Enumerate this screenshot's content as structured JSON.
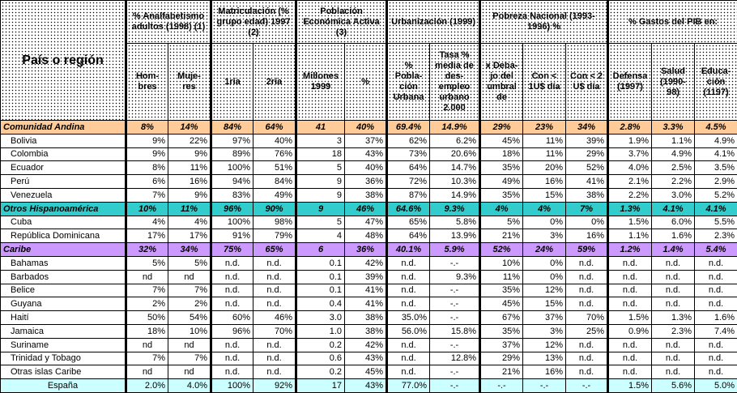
{
  "header": {
    "corner": "País o región",
    "groups": [
      "% Analfabetismo adultos (1998) (1)",
      "Matriculación (% grupo edad) 1997 (2)",
      "Población Económica Activa (3)",
      "Urbanización (1999)",
      "Pobreza Nacional (1993-1996) %",
      "% Gastos del PIB    en:"
    ],
    "sub": [
      "Hom-bres",
      "Muje-res",
      "1ría",
      "2ría",
      "Millones 1999",
      "%",
      "% Pobla-ción Urbana",
      "Tasa % media de des-empleo urbano 2.000",
      "x Deba-jo del umbral de",
      "Con < 1U$ día",
      "Con < 2 U$ día",
      "Defensa (1997)",
      "Salud (1990-98)",
      "Educa-ción (1197)"
    ]
  },
  "colors": {
    "comunidad_andina": "#FFCC99",
    "otros_hispanoamerica": "#33CCCC",
    "caribe": "#CC99FF",
    "espana": "#CCFFFF"
  },
  "rows": [
    {
      "type": "group",
      "color": "#FFCC99",
      "name": "Comunidad Andina",
      "cells": [
        "8%",
        "14%",
        "84%",
        "64%",
        "41",
        "40%",
        "69.4%",
        "14.9%",
        "29%",
        "23%",
        "34%",
        "2.8%",
        "3.3%",
        "4.5%"
      ]
    },
    {
      "type": "country",
      "name": "Bolivia",
      "cells": [
        "9%",
        "22%",
        "97%",
        "40%",
        "3",
        "37%",
        "62%",
        "6.2%",
        "45%",
        "11%",
        "39%",
        "1.9%",
        "1.1%",
        "4.9%"
      ]
    },
    {
      "type": "country",
      "name": "Colombia",
      "cells": [
        "9%",
        "9%",
        "89%",
        "76%",
        "18",
        "43%",
        "73%",
        "20.6%",
        "18%",
        "11%",
        "29%",
        "3.7%",
        "4.9%",
        "4.1%"
      ]
    },
    {
      "type": "country",
      "name": "Ecuador",
      "cells": [
        "8%",
        "11%",
        "100%",
        "51%",
        "5",
        "40%",
        "64%",
        "14.7%",
        "35%",
        "20%",
        "52%",
        "4.0%",
        "2.5%",
        "3.5%"
      ]
    },
    {
      "type": "country",
      "name": "Perú",
      "cells": [
        "6%",
        "16%",
        "94%",
        "84%",
        "9",
        "36%",
        "72%",
        "10.3%",
        "49%",
        "16%",
        "41%",
        "2.1%",
        "2.2%",
        "2.9%"
      ]
    },
    {
      "type": "country",
      "name": "Venezuela",
      "cells": [
        "7%",
        "9%",
        "83%",
        "49%",
        "9",
        "38%",
        "87%",
        "14.9%",
        "35%",
        "15%",
        "38%",
        "2.2%",
        "3.0%",
        "5.2%"
      ]
    },
    {
      "type": "group",
      "color": "#33CCCC",
      "name": "Otros Hispanoamérica",
      "cells": [
        "10%",
        "11%",
        "96%",
        "90%",
        "9",
        "46%",
        "64.6%",
        "9.3%",
        "4%",
        "4%",
        "7%",
        "1.3%",
        "4.1%",
        "4.1%"
      ]
    },
    {
      "type": "country",
      "name": "Cuba",
      "cells": [
        "4%",
        "4%",
        "100%",
        "98%",
        "5",
        "47%",
        "65%",
        "5.8%",
        "5%",
        "0%",
        "0%",
        "1.5%",
        "6.0%",
        "5.5%"
      ]
    },
    {
      "type": "country",
      "name": "República Dominicana",
      "cells": [
        "17%",
        "17%",
        "91%",
        "79%",
        "4",
        "48%",
        "64%",
        "13.9%",
        "21%",
        "3%",
        "16%",
        "1.1%",
        "1.6%",
        "2.3%"
      ]
    },
    {
      "type": "group",
      "color": "#CC99FF",
      "name": "Caribe",
      "cells": [
        "32%",
        "34%",
        "75%",
        "65%",
        "6",
        "36%",
        "40.1%",
        "5.9%",
        "52%",
        "24%",
        "59%",
        "1.2%",
        "1.4%",
        "5.4%"
      ]
    },
    {
      "type": "country",
      "name": "Bahamas",
      "cells": [
        "5%",
        "5%",
        "n.d.",
        "n.d.",
        "0.1",
        "42%",
        "n.d.",
        "-.-",
        "10%",
        "0%",
        "n.d.",
        "n.d.",
        "n.d.",
        "n.d."
      ]
    },
    {
      "type": "country",
      "name": "Barbados",
      "cells": [
        "nd",
        "nd",
        "n.d.",
        "n.d.",
        "0.1",
        "39%",
        "n.d.",
        "9.3%",
        "11%",
        "0%",
        "n.d.",
        "n.d.",
        "n.d.",
        "n.d."
      ]
    },
    {
      "type": "country",
      "name": "Belice",
      "cells": [
        "7%",
        "7%",
        "n.d.",
        "n.d.",
        "0.1",
        "41%",
        "n.d.",
        "-.-",
        "35%",
        "12%",
        "n.d.",
        "n.d.",
        "n.d.",
        "n.d."
      ]
    },
    {
      "type": "country",
      "name": "Guyana",
      "cells": [
        "2%",
        "2%",
        "n.d.",
        "n.d.",
        "0.4",
        "41%",
        "n.d.",
        "-.-",
        "45%",
        "15%",
        "n.d.",
        "n.d.",
        "n.d.",
        "n.d."
      ]
    },
    {
      "type": "country",
      "name": "Haití",
      "cells": [
        "50%",
        "54%",
        "60%",
        "46%",
        "3.0",
        "38%",
        "35.0%",
        "-.-",
        "67%",
        "37%",
        "70%",
        "1.5%",
        "1.3%",
        "1.6%"
      ]
    },
    {
      "type": "country",
      "name": "Jamaica",
      "cells": [
        "18%",
        "10%",
        "96%",
        "70%",
        "1.0",
        "38%",
        "56.0%",
        "15.8%",
        "35%",
        "3%",
        "25%",
        "0.9%",
        "2.3%",
        "7.4%"
      ]
    },
    {
      "type": "country",
      "name": "Suriname",
      "cells": [
        "nd",
        "nd",
        "n.d.",
        "n.d.",
        "0.2",
        "42%",
        "n.d.",
        "-.-",
        "37%",
        "12%",
        "n.d.",
        "n.d.",
        "n.d.",
        "n.d."
      ]
    },
    {
      "type": "country",
      "name": "Trinidad y Tobago",
      "cells": [
        "7%",
        "7%",
        "n.d.",
        "n.d.",
        "0.6",
        "43%",
        "n.d.",
        "12.8%",
        "29%",
        "13%",
        "n.d.",
        "n.d.",
        "n.d.",
        "n.d."
      ]
    },
    {
      "type": "country",
      "name": "Otras islas Caribe",
      "cells": [
        "nd",
        "nd",
        "n.d.",
        "n.d.",
        "0.2",
        "45%",
        "n.d.",
        "-.-",
        "21%",
        "16%",
        "n.d.",
        "n.d.",
        "n.d.",
        "n.d."
      ]
    },
    {
      "type": "spain",
      "color": "#CCFFFF",
      "name": "España",
      "cells": [
        "2.0%",
        "4.0%",
        "100%",
        "92%",
        "17",
        "43%",
        "77.0%",
        "-.-",
        "-.-",
        "-.-",
        "-.-",
        "1.5%",
        "5.6%",
        "5.0%"
      ]
    }
  ]
}
